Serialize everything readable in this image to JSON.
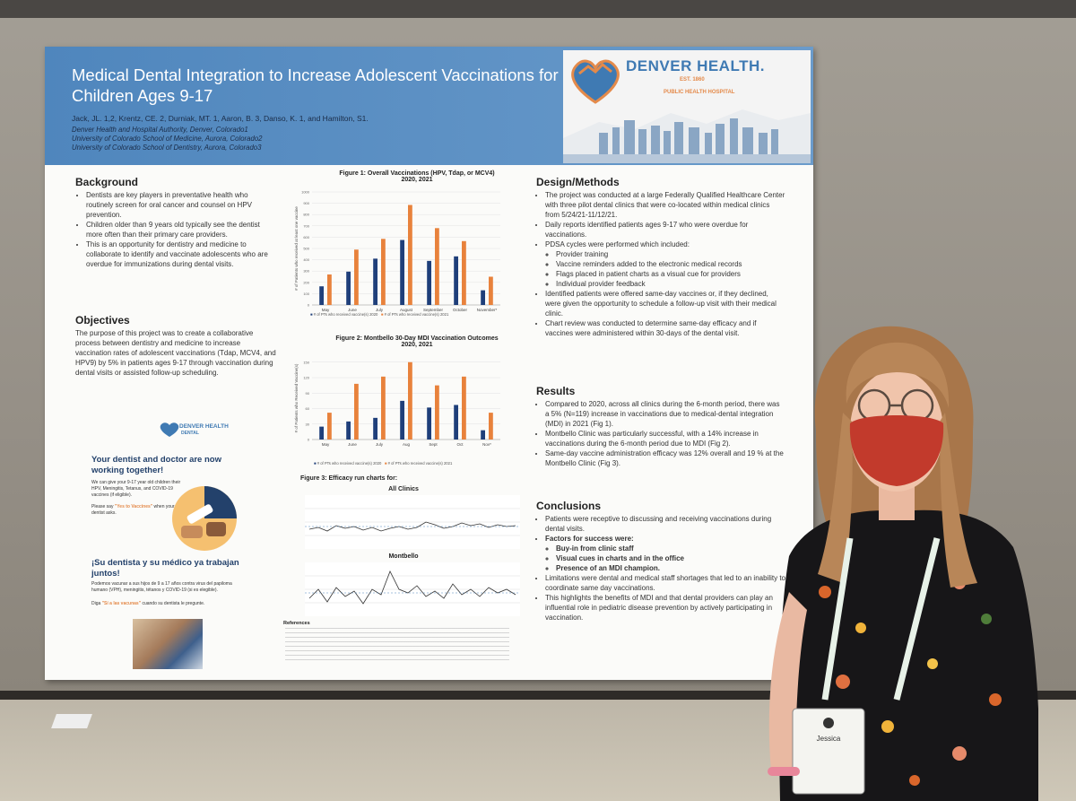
{
  "poster": {
    "title": "Medical Dental Integration to Increase Adolescent Vaccinations for Children Ages 9-17",
    "authors": "Jack, JL. 1,2, Krentz, CE. 2, Durniak, MT. 1, Aaron, B. 3, Danso, K. 1, and Hamilton, S1.",
    "affiliations": [
      "Denver Health and Hospital Authority, Denver, Colorado1",
      "University of Colorado School of Medicine, Aurora, Colorado2",
      "University of Colorado School of Dentistry, Aurora, Colorado3"
    ],
    "logo_text": "DENVER HEALTH.",
    "logo_sub1": "EST. 1860",
    "logo_sub2": "PUBLIC HEALTH HOSPITAL",
    "background": {
      "heading": "Background",
      "bullets": [
        "Dentists are key players in preventative health who routinely screen for oral cancer and counsel on HPV prevention.",
        "Children older than 9 years old typically see the dentist more often than their primary care providers.",
        "This is an opportunity for dentistry and medicine to collaborate to identify and vaccinate adolescents who are overdue for immunizations during dental visits."
      ]
    },
    "objectives": {
      "heading": "Objectives",
      "text": "The purpose of this project was to create a collaborative process between dentistry and medicine to increase vaccination rates of adolescent vaccinations (Tdap, MCV4, and HPV9) by 5% in patients ages 9-17 through vaccination during dental visits or assisted follow-up scheduling."
    },
    "design": {
      "heading": "Design/Methods",
      "bullets": [
        "The project was conducted at a large Federally Qualified Healthcare Center with three pilot dental clinics that were co-located within medical clinics from 5/24/21-11/12/21.",
        "Daily reports identified patients ages 9-17 who were overdue for vaccinations.",
        "PDSA cycles were performed which included:"
      ],
      "sub_bullets": [
        "Provider training",
        "Vaccine reminders added to the electronic medical records",
        "Flags placed in patient charts as a visual cue for providers",
        "Individual provider feedback"
      ],
      "bullets2": [
        "Identified patients were offered same-day vaccines or, if they declined, were given the opportunity to schedule a follow-up visit with their medical clinic.",
        "Chart review was conducted to determine same-day efficacy and if vaccines were administered within 30-days of the dental visit."
      ]
    },
    "results": {
      "heading": "Results",
      "bullets": [
        "Compared to 2020, across all clinics during the 6-month period, there was a 5% (N=119) increase in vaccinations due to medical-dental integration (MDI) in 2021 (Fig 1).",
        "Montbello Clinic was particularly successful, with a 14% increase in vaccinations during the 6-month period due to MDI (Fig 2).",
        "Same-day vaccine administration efficacy was 12% overall and 19 % at the Montbello Clinic (Fig 3)."
      ]
    },
    "conclusions": {
      "heading": "Conclusions",
      "bullets": [
        "Patients were receptive to discussing and receiving vaccinations during dental visits.",
        "Factors for success were:"
      ],
      "factors": [
        "Buy-in from clinic staff",
        "Visual cues in charts and in the office",
        "Presence of an MDI champion."
      ],
      "bullets2": [
        "Limitations were dental and medical staff shortages that led to an inability to coordinate same day vaccinations.",
        "This highlights the benefits of MDI and that dental providers can play an influential role in pediatric disease prevention by actively participating in vaccination."
      ]
    },
    "figure1": {
      "title1": "Figure 1: Overall Vaccinations (HPV, Tdap, or MCV4)",
      "title2": "2020, 2021"
    },
    "figure2": {
      "title1": "Figure 2: Montbello 30-Day MDI Vaccination Outcomes",
      "title2": "2020, 2021"
    },
    "figure3": {
      "title": "Figure 3: Efficacy run charts for:",
      "sub1": "All Clinics",
      "sub2": "Montbello"
    },
    "references_label": "References",
    "ad": {
      "logo": "DENVER HEALTH",
      "logo_sub": "DENTAL",
      "headline_en": "Your dentist and doctor are now working together!",
      "body_en": "We can give your 9-17 year old children their HPV, Meningitis, Tetanus, and COVID-19 vaccines (if eligible).",
      "ask_en_pre": "Please say",
      "ask_en_yes": "\"Yes to Vaccines\"",
      "ask_en_post": "when your dentist asks.",
      "headline_es": "¡Su dentista y su médico ya trabajan juntos!",
      "body_es": "Podemos vacunar a sus hijos de 9 a 17 años contra virus del papiloma humano (VPH), meningitis, tétanos y COVID-19 (si es elegible).",
      "ask_es_pre": "Diga",
      "ask_es_yes": "\"Sí a las vacunas\"",
      "ask_es_post": "cuando su dentista le pregunte."
    }
  },
  "badge": {
    "name": "Jessica"
  },
  "chart_data": [
    {
      "type": "bar",
      "title": "Figure 1: Overall Vaccinations (HPV, Tdap, or MCV4) 2020, 2021",
      "ylabel": "# of Patients who received at least one vaccine",
      "ylim": [
        0,
        1000
      ],
      "yticks": [
        0,
        100,
        200,
        300,
        400,
        500,
        600,
        700,
        800,
        900,
        1000
      ],
      "categories": [
        "May",
        "June",
        "July",
        "August",
        "September",
        "October",
        "November*"
      ],
      "series": [
        {
          "name": "# of PTs who received vaccine(s) 2020",
          "color": "#1f3f7a",
          "values": [
            165,
            295,
            410,
            575,
            390,
            430,
            130
          ]
        },
        {
          "name": "# of PTs who received vaccine(s) 2021",
          "color": "#e8823c",
          "values": [
            270,
            490,
            585,
            885,
            680,
            565,
            250
          ]
        }
      ],
      "legend": "bottom"
    },
    {
      "type": "bar",
      "title": "Figure 2: Montbello 30-Day MDI Vaccination Outcomes 2020, 2021",
      "ylabel": "# of Patients who Received Vaccine(s)",
      "ylim": [
        0,
        160
      ],
      "yticks": [
        0,
        30,
        60,
        90,
        120,
        150
      ],
      "categories": [
        "May",
        "June",
        "July",
        "Aug",
        "Sept",
        "Oct",
        "Nov*"
      ],
      "series": [
        {
          "name": "# of PTs who received vaccine(s) 2020",
          "color": "#1f3f7a",
          "values": [
            25,
            35,
            42,
            75,
            62,
            67,
            18
          ]
        },
        {
          "name": "# of PTs who received vaccine(s) 2021",
          "color": "#e8823c",
          "values": [
            52,
            108,
            122,
            150,
            105,
            122,
            52
          ]
        }
      ],
      "legend": "bottom"
    }
  ]
}
